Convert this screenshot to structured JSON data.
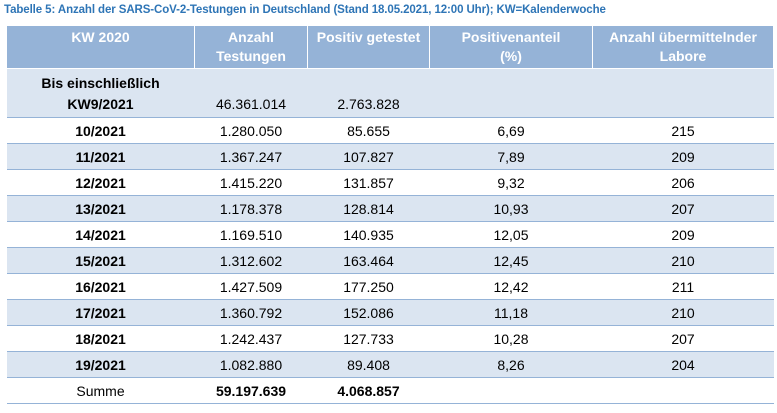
{
  "caption": "Tabelle 5: Anzahl der SARS-CoV-2-Testungen in Deutschland (Stand 18.05.2021, 12:00 Uhr); KW=Kalenderwoche",
  "headers": {
    "kw": "KW 2020",
    "anzahl_1": "Anzahl",
    "anzahl_2": "Testungen",
    "positiv": "Positiv getestet",
    "anteil_1": "Positivenanteil",
    "anteil_2": "(%)",
    "labore_1": "Anzahl übermittelnder",
    "labore_2": "Labore"
  },
  "first_row": {
    "kw_1": "Bis einschließlich",
    "kw_2": "KW9/2021",
    "anzahl": "46.361.014",
    "positiv": "2.763.828",
    "anteil": "",
    "labore": ""
  },
  "rows": [
    {
      "kw": "10/2021",
      "anzahl": "1.280.050",
      "positiv": "85.655",
      "anteil": "6,69",
      "labore": "215"
    },
    {
      "kw": "11/2021",
      "anzahl": "1.367.247",
      "positiv": "107.827",
      "anteil": "7,89",
      "labore": "209"
    },
    {
      "kw": "12/2021",
      "anzahl": "1.415.220",
      "positiv": "131.857",
      "anteil": "9,32",
      "labore": "206"
    },
    {
      "kw": "13/2021",
      "anzahl": "1.178.378",
      "positiv": "128.814",
      "anteil": "10,93",
      "labore": "207"
    },
    {
      "kw": "14/2021",
      "anzahl": "1.169.510",
      "positiv": "140.935",
      "anteil": "12,05",
      "labore": "209"
    },
    {
      "kw": "15/2021",
      "anzahl": "1.312.602",
      "positiv": "163.464",
      "anteil": "12,45",
      "labore": "210"
    },
    {
      "kw": "16/2021",
      "anzahl": "1.427.509",
      "positiv": "177.250",
      "anteil": "12,42",
      "labore": "211"
    },
    {
      "kw": "17/2021",
      "anzahl": "1.360.792",
      "positiv": "152.086",
      "anteil": "11,18",
      "labore": "210"
    },
    {
      "kw": "18/2021",
      "anzahl": "1.242.437",
      "positiv": "127.733",
      "anteil": "10,28",
      "labore": "207"
    },
    {
      "kw": "19/2021",
      "anzahl": "1.082.880",
      "positiv": "89.408",
      "anteil": "8,26",
      "labore": "204"
    }
  ],
  "sum_row": {
    "label": "Summe",
    "anzahl": "59.197.639",
    "positiv": "4.068.857",
    "anteil": "",
    "labore": ""
  },
  "colors": {
    "header_bg": "#95b3d7",
    "stripe_bg": "#dbe5f1",
    "caption": "#2e75b6"
  }
}
